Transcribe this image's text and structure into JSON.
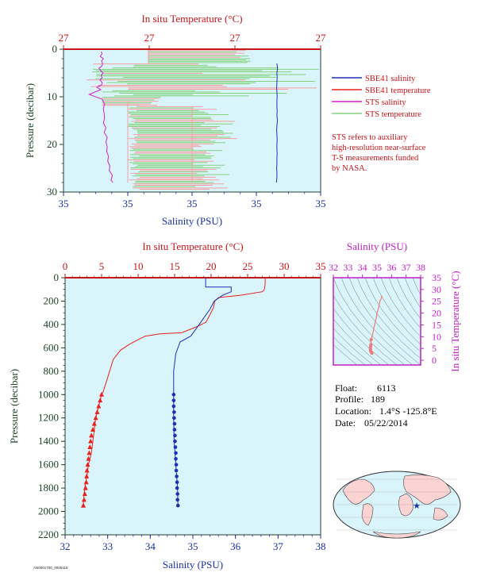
{
  "colors": {
    "panel_bg": "#d9f4fb",
    "sbe41_salinity": "#1f2fb5",
    "sbe41_temperature": "#e8231b",
    "sts_salinity": "#d21fd2",
    "sts_temperature": "#86d27e",
    "sts_temperature_alt": "#f5a0a0",
    "axis_green": "#20422a",
    "top_axis_red": "#c8151b",
    "bottom_axis_blue": "#1b2fa8",
    "ts_axis_magenta": "#c41fc4",
    "note_red": "#c8151b"
  },
  "legend": {
    "items": [
      {
        "label": "SBE41 salinity",
        "color_key": "sbe41_salinity"
      },
      {
        "label": "SBE41 temperature",
        "color_key": "sbe41_temperature"
      },
      {
        "label": "STS salinity",
        "color_key": "sts_salinity"
      },
      {
        "label": "STS temperature",
        "color_key": "sts_temperature"
      }
    ],
    "note_lines": [
      "STS refers to auxiliary",
      "high-resolution near-surface",
      "T-S measurements funded",
      "by NASA."
    ]
  },
  "info": {
    "float_label": "Float:",
    "float_value": "6113",
    "profile_label": "Profile:",
    "profile_value": "189",
    "location_label": "Location:",
    "location_value": "1.4°S -125.8°E",
    "date_label": "Date:",
    "date_value": "05/22/2014"
  },
  "footer_code": "AN0001700_0006118",
  "chart_data": [
    {
      "name": "near-surface",
      "type": "line",
      "top_axis_label": "In situ Temperature (°C)",
      "top_ticks": [
        "27",
        "27",
        "27",
        "27"
      ],
      "bottom_axis_label": "Salinity (PSU)",
      "bottom_ticks": [
        "35",
        "35",
        "35",
        "35",
        "35"
      ],
      "y_label": "Pressure (decibar)",
      "y_ticks": [
        0,
        10,
        20,
        30
      ],
      "ylim": [
        30,
        0
      ],
      "xlim_frac": [
        0,
        1
      ],
      "series": [
        {
          "name": "STS salinity",
          "color_key": "sts_salinity",
          "axis": "bottom",
          "x": [
            0.147,
            0.15,
            0.143,
            0.155,
            0.148,
            0.152,
            0.15,
            0.138,
            0.145,
            0.153,
            0.147,
            0.15,
            0.142,
            0.151,
            0.148,
            0.13,
            0.145,
            0.1,
            0.15,
            0.16,
            0.155,
            0.158,
            0.16,
            0.155,
            0.165,
            0.158,
            0.17,
            0.165,
            0.17,
            0.168,
            0.175,
            0.172,
            0.18,
            0.178,
            0.19,
            0.185,
            0.192
          ],
          "y": [
            0.5,
            1,
            1.5,
            2,
            2.5,
            3,
            3.5,
            4,
            4.5,
            5,
            5.5,
            6,
            6.5,
            7,
            7.5,
            8,
            8.5,
            9.5,
            10.5,
            11.5,
            12.5,
            13.5,
            14.5,
            15.5,
            16.5,
            17.5,
            18.5,
            19.5,
            20.5,
            21.5,
            22.5,
            23.5,
            24.5,
            25.5,
            26.5,
            27.5,
            28
          ]
        },
        {
          "name": "SBE41 salinity",
          "color_key": "sbe41_salinity",
          "axis": "bottom",
          "x": [
            0.83,
            0.832,
            0.83,
            0.831,
            0.83,
            0.829,
            0.83,
            0.831,
            0.83,
            0.83,
            0.831,
            0.83,
            0.832,
            0.83,
            0.829,
            0.83,
            0.831,
            0.83,
            0.83,
            0.831,
            0.83,
            0.83,
            0.829,
            0.83,
            0.83,
            0.828
          ],
          "y": [
            3,
            4,
            5,
            6,
            7,
            8,
            9,
            10,
            11,
            12,
            13,
            14,
            15,
            16,
            17,
            18,
            19,
            20,
            21,
            22,
            23,
            24,
            25,
            26,
            27,
            28
          ]
        }
      ]
    },
    {
      "name": "full-profile",
      "type": "line",
      "top_axis_label": "In situ Temperature (°C)",
      "top_ticks": [
        0,
        5,
        10,
        15,
        20,
        25,
        30,
        35
      ],
      "xlim_top": [
        0,
        35
      ],
      "bottom_axis_label": "Salinity (PSU)",
      "bottom_ticks": [
        32,
        33,
        34,
        35,
        36,
        37,
        38
      ],
      "xlim_bottom": [
        32,
        38
      ],
      "y_label": "Pressure (decibar)",
      "y_ticks": [
        0,
        200,
        400,
        600,
        800,
        1000,
        1200,
        1400,
        1600,
        1800,
        2000,
        2200
      ],
      "ylim": [
        2200,
        0
      ],
      "series": [
        {
          "name": "SBE41 temperature",
          "color_key": "sbe41_temperature",
          "axis": "top",
          "x": [
            27.4,
            27.4,
            27.3,
            27,
            24,
            21,
            20.5,
            20.3,
            19.8,
            19.3,
            18,
            16,
            13,
            11,
            10,
            8.8,
            7.6,
            6.6,
            6.1,
            5.8,
            5.5,
            5.2,
            5,
            4.8,
            4.6,
            4.4,
            4.2,
            4,
            3.8,
            3.6,
            3.4,
            3.2,
            3,
            2.8,
            2.7,
            2.6,
            2.5
          ],
          "y": [
            0,
            50,
            100,
            120,
            150,
            170,
            200,
            260,
            320,
            380,
            420,
            470,
            480,
            500,
            530,
            570,
            620,
            700,
            800,
            860,
            920,
            980,
            1000,
            1050,
            1100,
            1150,
            1200,
            1300,
            1400,
            1500,
            1550,
            1600,
            1700,
            1750,
            1800,
            1850,
            1950
          ]
        },
        {
          "name": "SBE41 salinity",
          "color_key": "sbe41_salinity",
          "axis": "bottom",
          "x": [
            35.3,
            35.3,
            35.9,
            35.9,
            35.7,
            35.5,
            35.4,
            35.15,
            35.05,
            34.95,
            34.7,
            34.6,
            34.55,
            34.55,
            34.55,
            34.56,
            34.58,
            34.6,
            34.62,
            34.64,
            34.65
          ],
          "y": [
            0,
            80,
            80,
            120,
            150,
            200,
            270,
            400,
            450,
            500,
            550,
            650,
            800,
            1000,
            1200,
            1400,
            1500,
            1600,
            1700,
            1800,
            1950
          ]
        }
      ],
      "markers": {
        "temperature": {
          "x": [
            5,
            4.8,
            4.6,
            4.4,
            4.2,
            4,
            3.8,
            3.6,
            3.5,
            3.4,
            3.3,
            3.2,
            3.1,
            3,
            2.95,
            2.9,
            2.8,
            2.7,
            2.6,
            2.5,
            2.5
          ],
          "y": [
            1000,
            1050,
            1100,
            1150,
            1200,
            1250,
            1300,
            1350,
            1400,
            1450,
            1500,
            1550,
            1600,
            1650,
            1700,
            1750,
            1800,
            1850,
            1900,
            1950,
            1950
          ]
        },
        "salinity": {
          "x": [
            34.55,
            34.55,
            34.55,
            34.56,
            34.56,
            34.57,
            34.57,
            34.58,
            34.58,
            34.59,
            34.6,
            34.6,
            34.61,
            34.61,
            34.62,
            34.63,
            34.63,
            34.64,
            34.64,
            34.65
          ],
          "y": [
            1000,
            1050,
            1100,
            1150,
            1200,
            1250,
            1300,
            1350,
            1400,
            1450,
            1500,
            1550,
            1600,
            1650,
            1700,
            1750,
            1800,
            1850,
            1900,
            1950
          ]
        }
      }
    },
    {
      "name": "ts-diagram",
      "type": "scatter",
      "top_axis_label": "Salinity (PSU)",
      "top_ticks": [
        32,
        33,
        34,
        35,
        36,
        37,
        38
      ],
      "xlim": [
        32,
        38
      ],
      "right_axis_label": "In situ Temperature (°C)",
      "right_ticks": [
        0,
        5,
        10,
        15,
        20,
        25,
        30,
        35
      ],
      "ylim": [
        -2,
        35
      ],
      "series": [
        {
          "name": "T-S curve",
          "color_key": "sbe41_temperature",
          "x": [
            35.3,
            35.35,
            35.2,
            35.1,
            35.0,
            34.95,
            34.8,
            34.7,
            34.6,
            34.58,
            34.56,
            34.55,
            34.55,
            34.56,
            34.6,
            34.65
          ],
          "y": [
            27.3,
            27,
            25,
            22,
            20,
            18,
            14,
            11,
            8.8,
            6.6,
            5.8,
            5,
            4.5,
            4,
            3.5,
            3
          ]
        }
      ]
    }
  ]
}
